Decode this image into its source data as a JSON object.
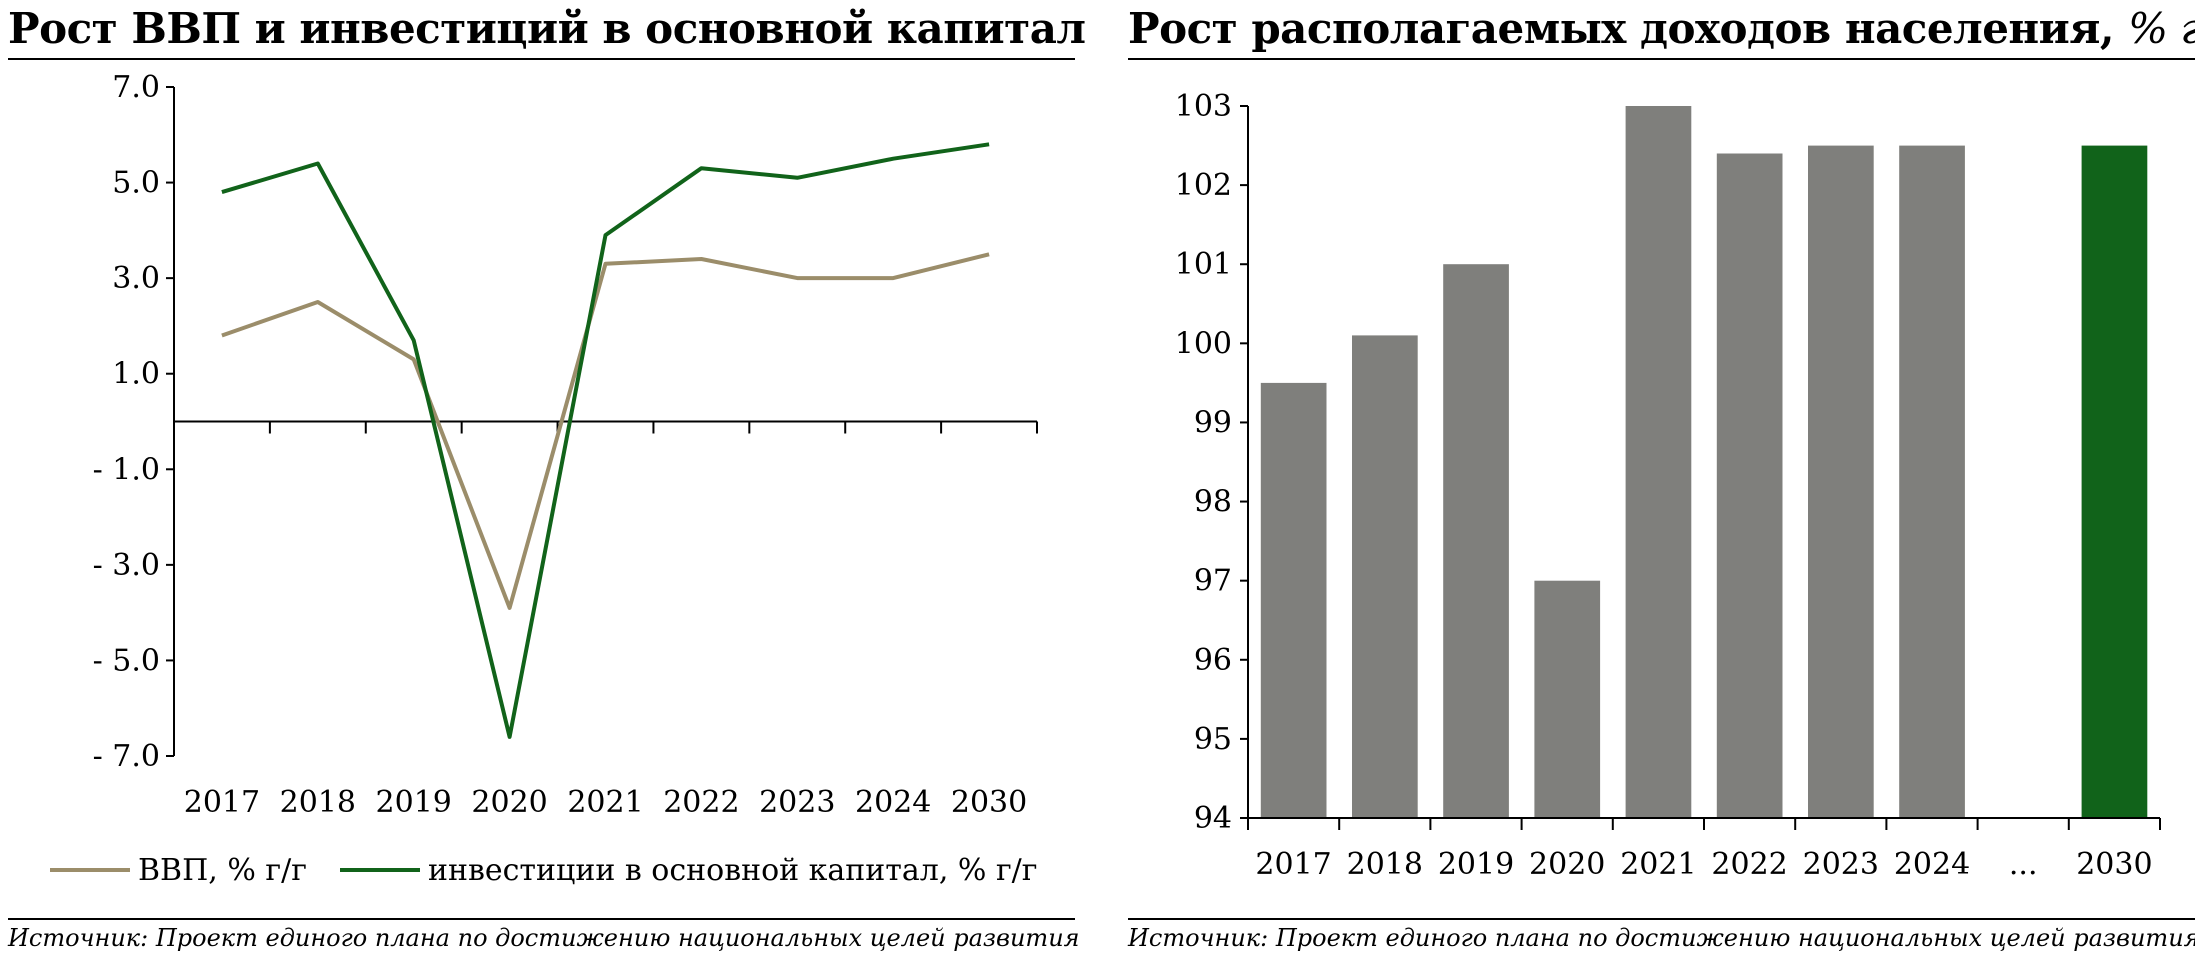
{
  "charts": {
    "left": {
      "title": "Рост ВВП и инвестиций в основной капитал",
      "source": "Источник: Проект единого плана по достижению национальных целей развития"
    },
    "right": {
      "title": "Рост располагаемых доходов населения,",
      "title_unit": "% г/г",
      "source": "Источник: Проект единого плана по достижению национальных целей развития"
    }
  },
  "chart_data": [
    {
      "type": "line",
      "title": "Рост ВВП и инвестиций в основной капитал",
      "categories": [
        "2017",
        "2018",
        "2019",
        "2020",
        "2021",
        "2022",
        "2023",
        "2024",
        "2030"
      ],
      "ylim": [
        -7,
        7
      ],
      "y_ticks": [
        7,
        5,
        3,
        1,
        -1,
        -3,
        -5,
        -7
      ],
      "y_tick_labels": [
        "7.0",
        "5.0",
        "3.0",
        "1.0",
        "- 1.0",
        "- 3.0",
        "- 5.0",
        "- 7.0"
      ],
      "grid": false,
      "legend": "bottom",
      "series": [
        {
          "name": "ВВП, % г/г",
          "color": "#9b8d6a",
          "values": [
            1.8,
            2.5,
            1.3,
            -3.9,
            3.3,
            3.4,
            3.0,
            3.0,
            3.5
          ]
        },
        {
          "name": "инвестиции в основной капитал, % г/г",
          "color": "#11631a",
          "values": [
            4.8,
            5.4,
            1.7,
            -6.6,
            3.9,
            5.3,
            5.1,
            5.5,
            5.8
          ]
        }
      ]
    },
    {
      "type": "bar",
      "title": "Рост располагаемых доходов населения, % г/г",
      "categories": [
        "2017",
        "2018",
        "2019",
        "2020",
        "2021",
        "2022",
        "2023",
        "2024",
        "...",
        "2030"
      ],
      "values": [
        99.5,
        100.1,
        101.0,
        97.0,
        103.0,
        102.4,
        102.5,
        102.5,
        null,
        102.5
      ],
      "colors": [
        "#7f7f7c",
        "#7f7f7c",
        "#7f7f7c",
        "#7f7f7c",
        "#7f7f7c",
        "#7f7f7c",
        "#7f7f7c",
        "#7f7f7c",
        null,
        "#11631a"
      ],
      "ylim": [
        94,
        103
      ],
      "y_ticks": [
        103,
        102,
        101,
        100,
        99,
        98,
        97,
        96,
        95,
        94
      ],
      "grid": false,
      "legend": "none"
    }
  ]
}
